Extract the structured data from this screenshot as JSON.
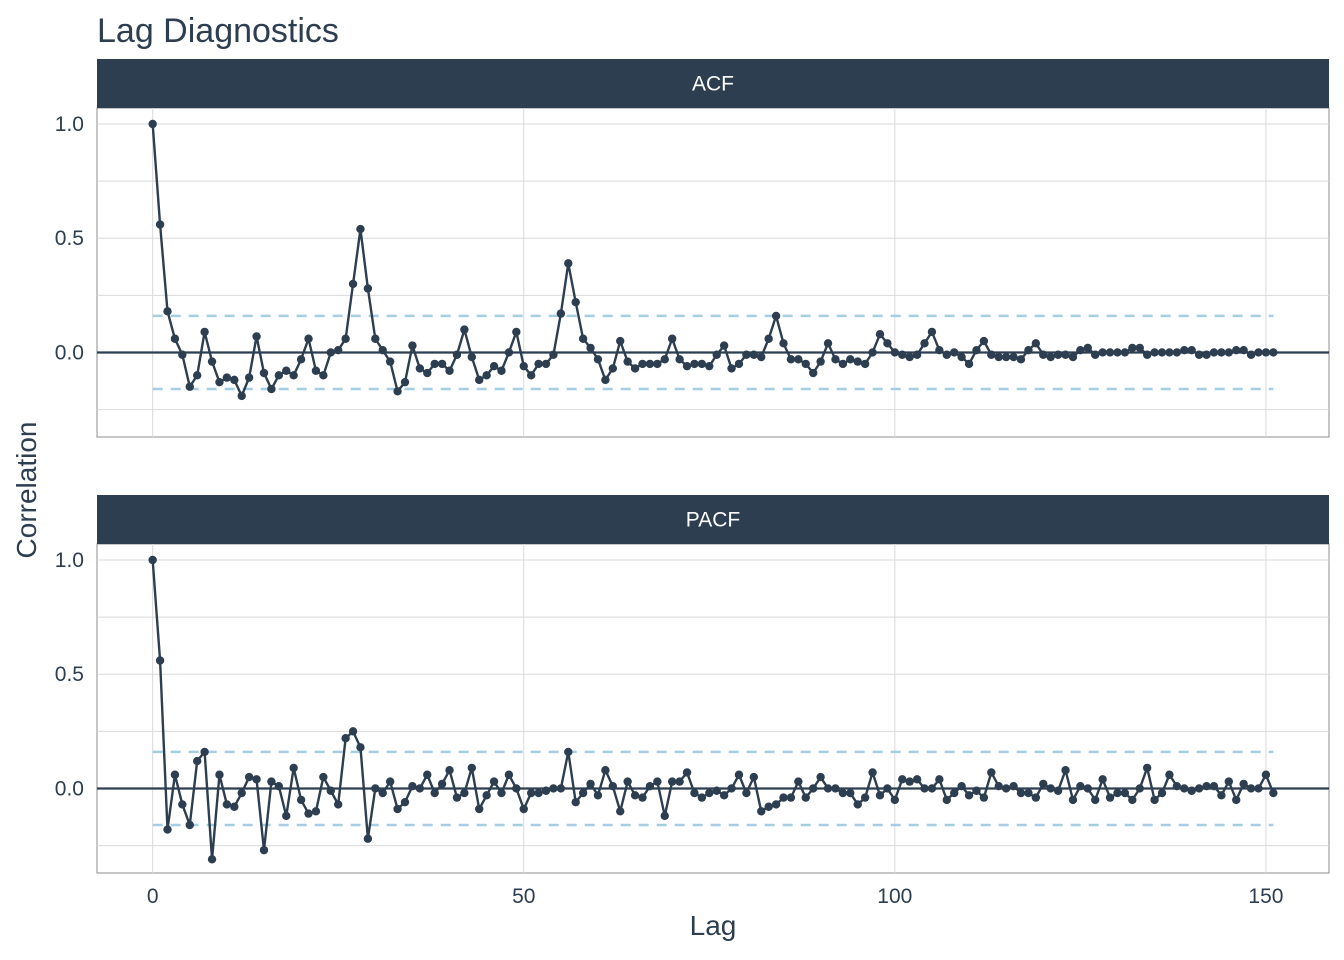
{
  "title": "Lag Diagnostics",
  "colors": {
    "strip": "#2c3e50",
    "strip_text": "#ffffff",
    "line": "#2c3e50",
    "point": "#2c3e50",
    "ci": "#a6cee3",
    "grid": "#d9d9d9",
    "zero": "#2c3e50",
    "text": "#2c3e50"
  },
  "chart_data": {
    "type": "line",
    "title": "Lag Diagnostics",
    "xlabel": "Lag",
    "ylabel": "Correlation",
    "xlim": [
      -7.5,
      158.5
    ],
    "x_ticks": [
      0,
      50,
      100,
      150
    ],
    "x_tick_labels": [
      "0",
      "50",
      "100",
      "150"
    ],
    "y_ticks": [
      0.0,
      0.5,
      1.0
    ],
    "y_tick_labels": [
      "0.0",
      "0.5",
      "1.0"
    ],
    "grid": true,
    "ci": 0.16,
    "panels": [
      {
        "name": "ACF",
        "ylim": [
          -0.37,
          1.07
        ],
        "x_start": 0,
        "values": [
          1.0,
          0.56,
          0.18,
          0.06,
          -0.01,
          -0.15,
          -0.1,
          0.09,
          -0.04,
          -0.13,
          -0.11,
          -0.12,
          -0.19,
          -0.11,
          0.07,
          -0.09,
          -0.16,
          -0.1,
          -0.08,
          -0.1,
          -0.03,
          0.06,
          -0.08,
          -0.1,
          0.0,
          0.01,
          0.06,
          0.3,
          0.54,
          0.28,
          0.06,
          0.01,
          -0.04,
          -0.17,
          -0.13,
          0.03,
          -0.07,
          -0.09,
          -0.05,
          -0.05,
          -0.08,
          -0.01,
          0.1,
          -0.02,
          -0.12,
          -0.1,
          -0.06,
          -0.08,
          0.0,
          0.09,
          -0.06,
          -0.1,
          -0.05,
          -0.05,
          -0.01,
          0.17,
          0.39,
          0.22,
          0.06,
          0.02,
          -0.03,
          -0.12,
          -0.07,
          0.05,
          -0.04,
          -0.07,
          -0.05,
          -0.05,
          -0.05,
          -0.03,
          0.06,
          -0.03,
          -0.06,
          -0.05,
          -0.05,
          -0.06,
          -0.01,
          0.03,
          -0.07,
          -0.05,
          -0.01,
          -0.01,
          -0.02,
          0.06,
          0.16,
          0.04,
          -0.03,
          -0.03,
          -0.05,
          -0.09,
          -0.04,
          0.04,
          -0.03,
          -0.05,
          -0.03,
          -0.04,
          -0.05,
          0.0,
          0.08,
          0.04,
          0.0,
          -0.01,
          -0.02,
          -0.01,
          0.04,
          0.09,
          0.01,
          -0.01,
          0.0,
          -0.02,
          -0.05,
          0.01,
          0.05,
          -0.01,
          -0.02,
          -0.02,
          -0.02,
          -0.03,
          0.01,
          0.04,
          -0.01,
          -0.02,
          -0.01,
          -0.01,
          -0.02,
          0.01,
          0.02,
          -0.01,
          0.0,
          0.0,
          0.0,
          0.0,
          0.02,
          0.02,
          -0.01,
          0.0,
          0.0,
          0.0,
          0.0,
          0.01,
          0.01,
          -0.01,
          -0.01,
          0.0,
          0.0,
          0.0,
          0.01,
          0.01,
          -0.01,
          0.0,
          0.0,
          0.0
        ]
      },
      {
        "name": "PACF",
        "ylim": [
          -0.37,
          1.07
        ],
        "x_start": 0,
        "values": [
          1.0,
          0.56,
          -0.18,
          0.06,
          -0.07,
          -0.16,
          0.12,
          0.16,
          -0.31,
          0.06,
          -0.07,
          -0.08,
          -0.02,
          0.05,
          0.04,
          -0.27,
          0.03,
          0.01,
          -0.12,
          0.09,
          -0.05,
          -0.11,
          -0.1,
          0.05,
          -0.01,
          -0.07,
          0.22,
          0.25,
          0.18,
          -0.22,
          0.0,
          -0.02,
          0.03,
          -0.09,
          -0.06,
          0.01,
          0.0,
          0.06,
          -0.02,
          0.02,
          0.08,
          -0.04,
          -0.02,
          0.09,
          -0.09,
          -0.03,
          0.03,
          -0.02,
          0.06,
          0.0,
          -0.09,
          -0.02,
          -0.02,
          -0.01,
          0.0,
          0.0,
          0.16,
          -0.06,
          -0.02,
          0.02,
          -0.03,
          0.08,
          0.01,
          -0.1,
          0.03,
          -0.03,
          -0.04,
          0.01,
          0.03,
          -0.12,
          0.03,
          0.03,
          0.07,
          -0.02,
          -0.04,
          -0.02,
          -0.01,
          -0.03,
          0.0,
          0.06,
          -0.02,
          0.05,
          -0.1,
          -0.08,
          -0.07,
          -0.04,
          -0.04,
          0.03,
          -0.04,
          0.0,
          0.05,
          0.0,
          0.0,
          -0.02,
          -0.02,
          -0.07,
          -0.04,
          0.07,
          -0.03,
          0.0,
          -0.05,
          0.04,
          0.03,
          0.04,
          0.0,
          0.0,
          0.04,
          -0.05,
          -0.02,
          0.01,
          -0.03,
          -0.01,
          -0.04,
          0.07,
          0.01,
          0.0,
          0.01,
          -0.02,
          -0.02,
          -0.04,
          0.02,
          0.0,
          -0.01,
          0.08,
          -0.05,
          0.01,
          0.0,
          -0.05,
          0.04,
          -0.04,
          -0.02,
          -0.02,
          -0.05,
          0.0,
          0.09,
          -0.05,
          -0.02,
          0.06,
          0.01,
          0.0,
          -0.01,
          0.0,
          0.01,
          0.01,
          -0.03,
          0.03,
          -0.05,
          0.02,
          0.0,
          0.0,
          0.06,
          -0.02
        ]
      }
    ]
  }
}
